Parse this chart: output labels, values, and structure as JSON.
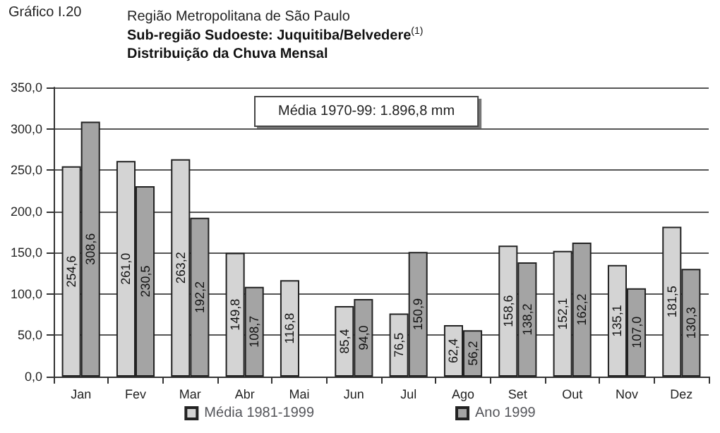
{
  "chart_data": {
    "type": "bar",
    "title": "Região Metropolitana de São Paulo",
    "subtitle": "Sub-região Sudoeste: Juquitiba/Belvedere$^{(1)}$\nDistribuição da Chuva Mensal",
    "annotations": [
      "Gráfico I.20",
      "Média 1970-99: 1.896,8 mm"
    ],
    "categories": [
      "Jan",
      "Fev",
      "Mar",
      "Abr",
      "Mai",
      "Jun",
      "Jul",
      "Ago",
      "Set",
      "Out",
      "Nov",
      "Dez"
    ],
    "series": [
      {
        "name": "Média 1981-1999",
        "color": "#d4d4d4",
        "values": [
          254.6,
          261.0,
          263.2,
          149.8,
          116.8,
          85.4,
          76.5,
          62.4,
          158.6,
          152.1,
          135.1,
          181.5
        ],
        "value_labels": [
          "254,6",
          "261,0",
          "263,2",
          "149,8",
          "116,8",
          "85,4",
          "76,5",
          "62,4",
          "158,6",
          "152,1",
          "135,1",
          "181,5"
        ]
      },
      {
        "name": "Ano 1999",
        "color": "#a4a4a4",
        "values": [
          308.6,
          230.5,
          192.2,
          108.7,
          null,
          94.0,
          150.9,
          56.2,
          138.2,
          162.2,
          107.0,
          130.3
        ],
        "value_labels": [
          "308,6",
          "230,5",
          "192,2",
          "108,7",
          null,
          "94,0",
          "150,9",
          "56,2",
          "138,2",
          "162,2",
          "107,0",
          "130,3"
        ]
      }
    ],
    "ylim": [
      0,
      350
    ],
    "yticks": [
      {
        "value": 0,
        "label": "0,0"
      },
      {
        "value": 50,
        "label": "50,0"
      },
      {
        "value": 100,
        "label": "100,0"
      },
      {
        "value": 150,
        "label": "150,0"
      },
      {
        "value": 200,
        "label": "200,0"
      },
      {
        "value": 250,
        "label": "250,0"
      },
      {
        "value": 300,
        "label": "300,0"
      },
      {
        "value": 350,
        "label": "350,0"
      }
    ],
    "grid": "y",
    "legend": "bottom"
  }
}
